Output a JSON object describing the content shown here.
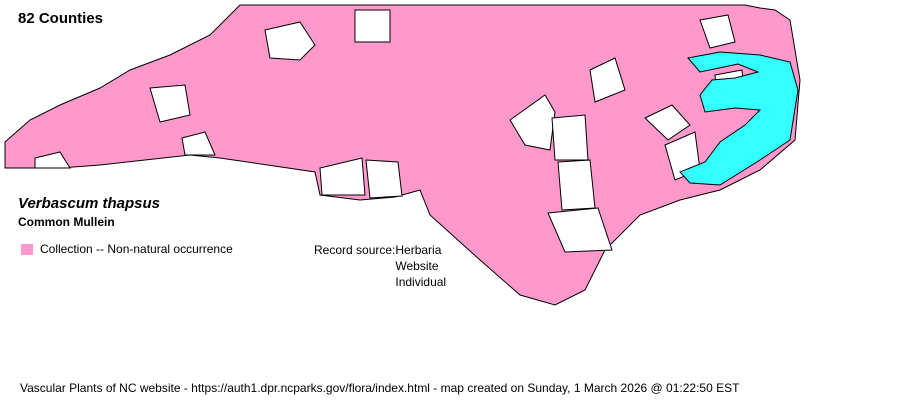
{
  "map": {
    "county_count_label": "82 Counties",
    "scientific_name": "Verbascum thapsus",
    "common_name": "Common Mullein",
    "legend": [
      {
        "label": "Collection -- Non-natural occurrence",
        "color": "#ff99cc"
      }
    ],
    "record_source_label": "Record source:",
    "record_sources": [
      "Herbaria",
      "Website",
      "Individual"
    ],
    "colors": {
      "present": "#ff99cc",
      "absent": "#ffffff",
      "water": "#33ffff",
      "border": "#000000"
    }
  },
  "footer": {
    "text": "Vascular Plants of NC website - https://auth1.dpr.ncparks.gov/flora/index.html - map created on Sunday, 1 March 2026 @ 01:22:50 EST"
  }
}
